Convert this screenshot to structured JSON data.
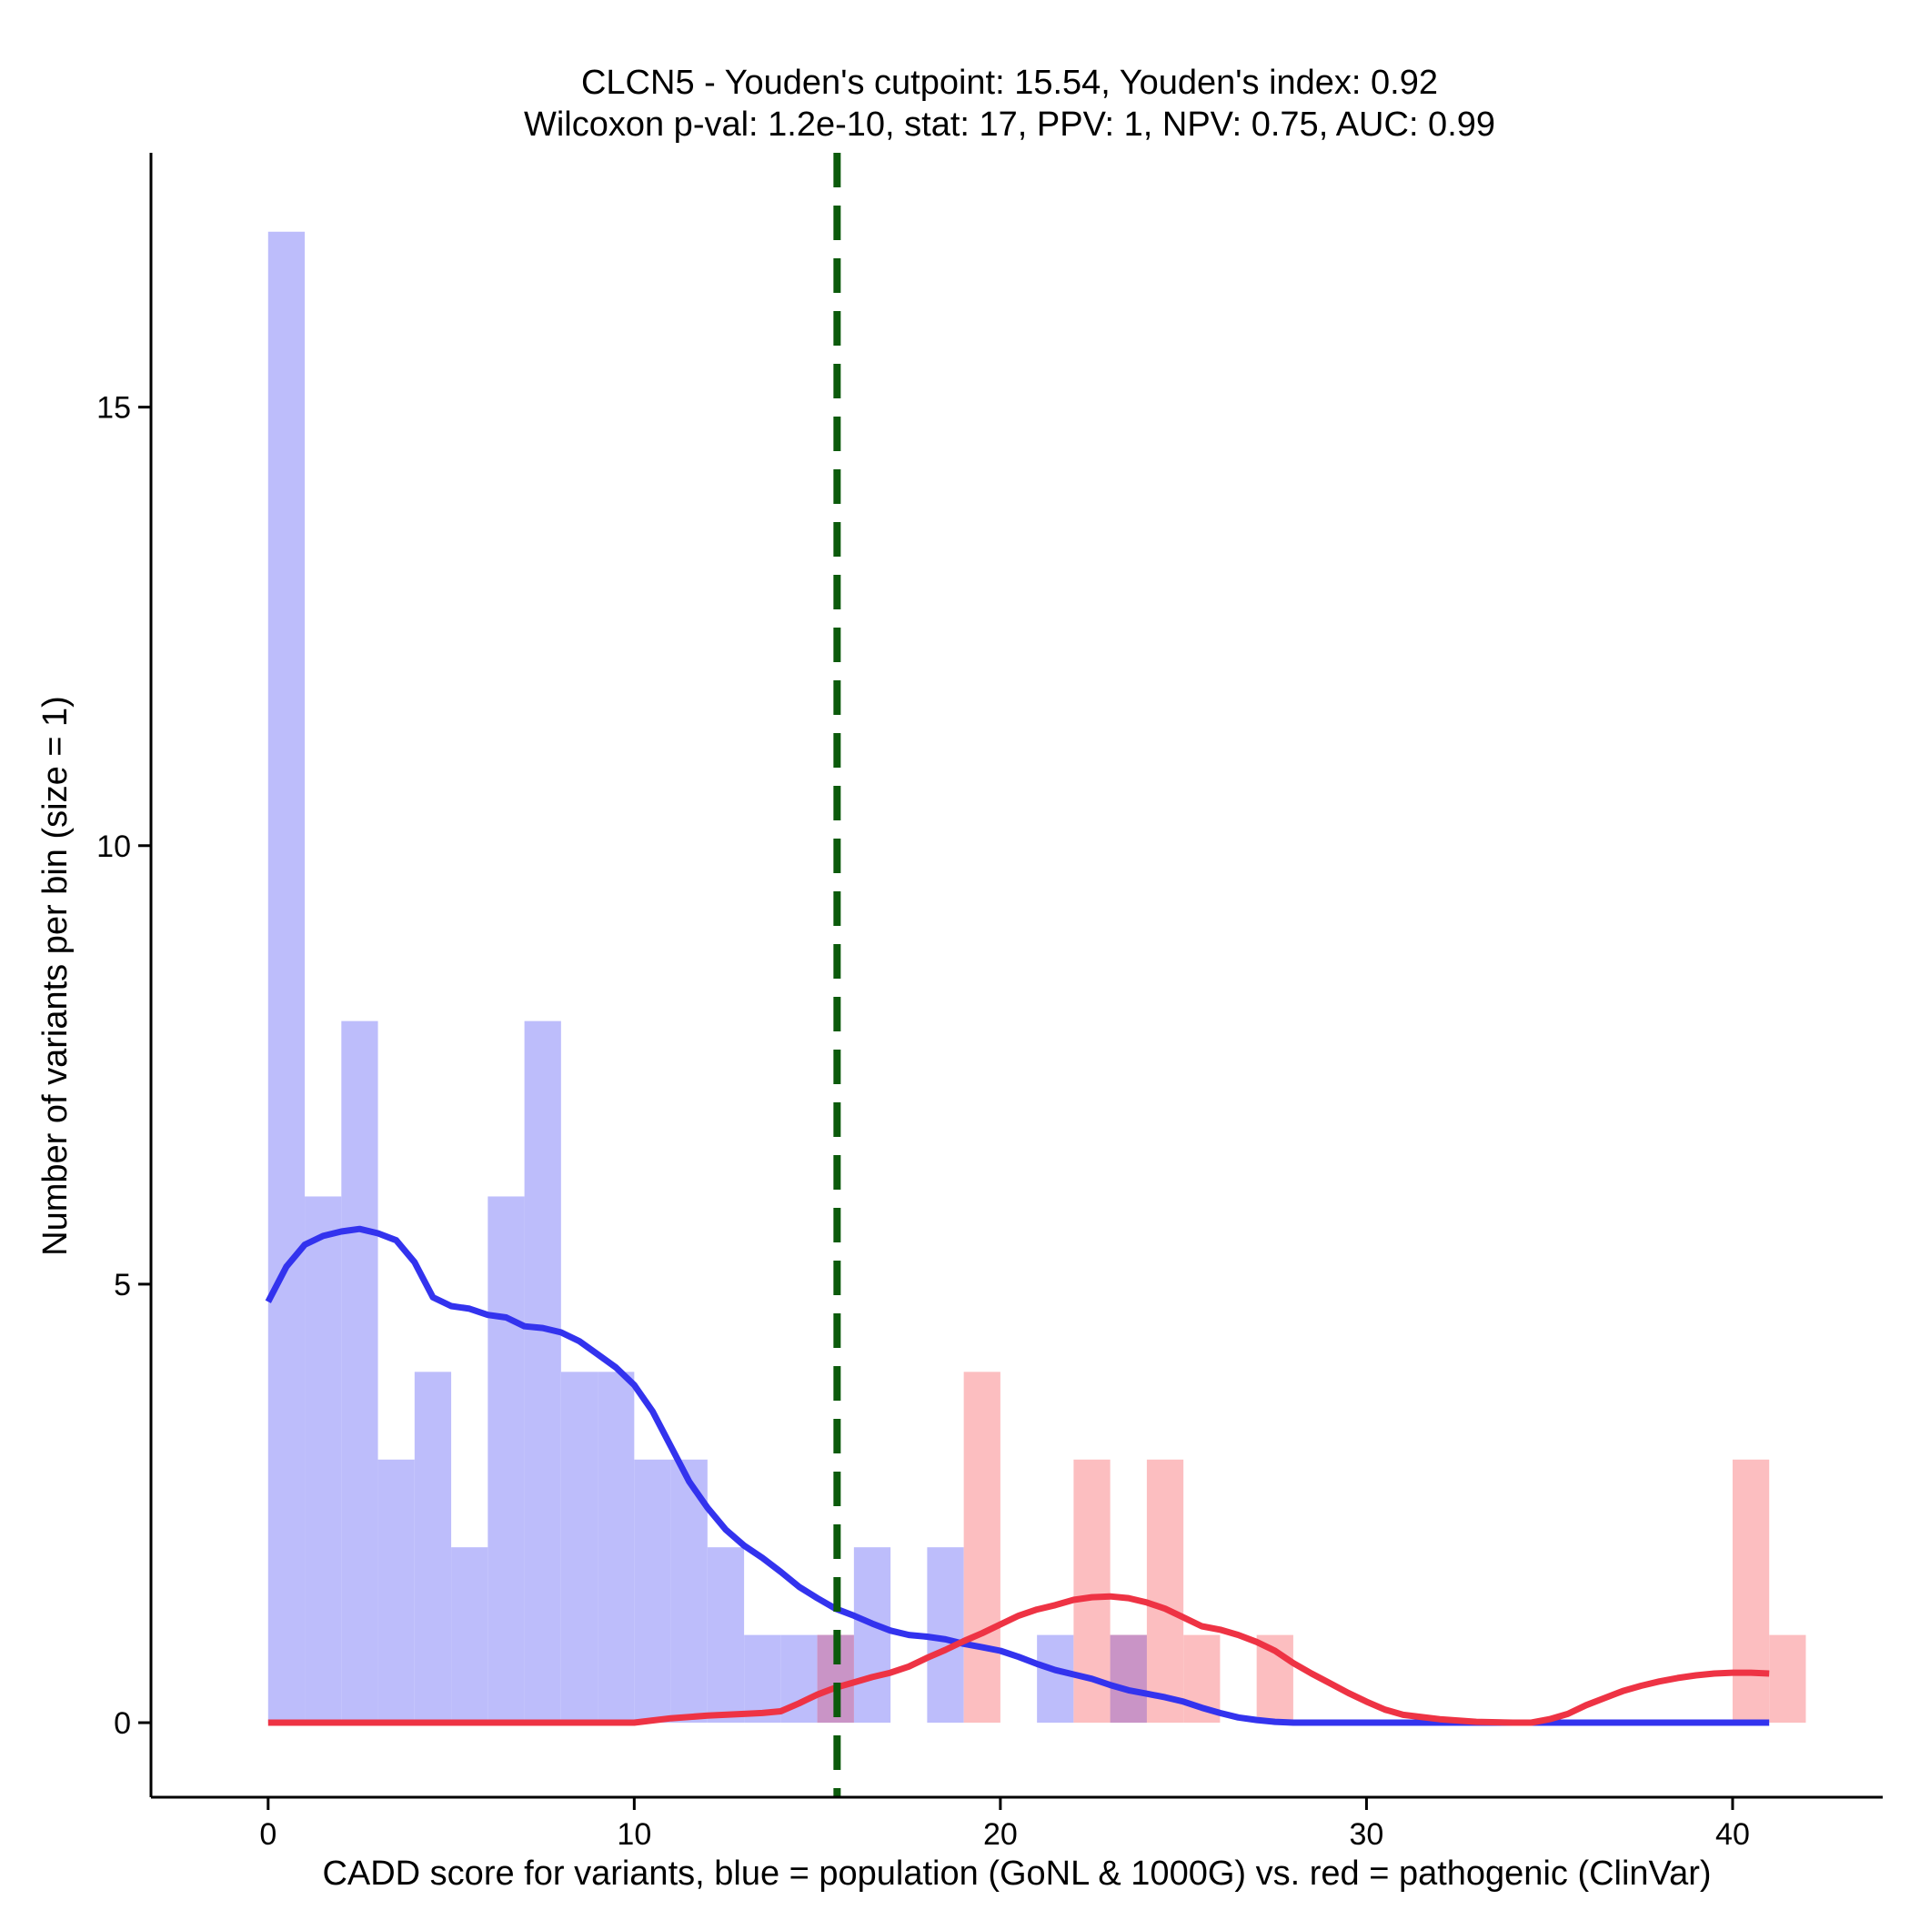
{
  "chart_data": {
    "type": "bar",
    "title": "CLCN5 - Youden's cutpoint: 15.54, Youden's index: 0.92",
    "subtitle": "Wilcoxon p-val: 1.2e-10, stat: 17, PPV: 1, NPV: 0.75, AUC: 0.99",
    "xlabel": "CADD score for variants, blue = population (GoNL & 1000G) vs. red = pathogenic (ClinVar)",
    "ylabel": "Number of variants per bin (size = 1)",
    "xlim": [
      -3.2,
      44.1
    ],
    "ylim": [
      -0.85,
      17.9
    ],
    "xticks": [
      0,
      10,
      20,
      30,
      40
    ],
    "yticks": [
      0,
      5,
      10,
      15
    ],
    "bin_size": 1,
    "cutpoint": 15.54,
    "colors": {
      "population_bar": "#BDBDFB",
      "pathogenic_bar": "#FCBEC0",
      "overlap_bar": "#C994C6",
      "population_line": "#3333EE",
      "pathogenic_line": "#EE3344",
      "cutpoint_line": "#0B5A0B"
    },
    "series": [
      {
        "name": "population (GoNL & 1000G)",
        "bin_starts": [
          0,
          1,
          2,
          3,
          4,
          5,
          6,
          7,
          8,
          9,
          10,
          11,
          12,
          13,
          14,
          15,
          16,
          17,
          18,
          19,
          20,
          21,
          22,
          23,
          24,
          25,
          26,
          27,
          28,
          29,
          30,
          31,
          32,
          33,
          34,
          35,
          36,
          37,
          38,
          39,
          40,
          41
        ],
        "counts": [
          17,
          6,
          8,
          3,
          4,
          2,
          6,
          8,
          4,
          4,
          3,
          3,
          2,
          1,
          1,
          1,
          2,
          0,
          2,
          0,
          0,
          1,
          0,
          1,
          0,
          0,
          0,
          0,
          0,
          0,
          0,
          0,
          0,
          0,
          0,
          0,
          0,
          0,
          0,
          0,
          0,
          0
        ]
      },
      {
        "name": "pathogenic (ClinVar)",
        "bin_starts": [
          0,
          1,
          2,
          3,
          4,
          5,
          6,
          7,
          8,
          9,
          10,
          11,
          12,
          13,
          14,
          15,
          16,
          17,
          18,
          19,
          20,
          21,
          22,
          23,
          24,
          25,
          26,
          27,
          28,
          29,
          30,
          31,
          32,
          33,
          34,
          35,
          36,
          37,
          38,
          39,
          40,
          41
        ],
        "counts": [
          0,
          0,
          0,
          0,
          0,
          0,
          0,
          0,
          0,
          0,
          0,
          0,
          0,
          0,
          0,
          1,
          0,
          0,
          0,
          4,
          0,
          0,
          3,
          1,
          3,
          1,
          0,
          1,
          0,
          0,
          0,
          0,
          0,
          0,
          0,
          0,
          0,
          0,
          0,
          0,
          3,
          1
        ]
      }
    ],
    "density_curves": [
      {
        "name": "population (GoNL & 1000G)",
        "x": [
          0,
          0.5,
          1,
          1.5,
          2,
          2.5,
          3,
          3.5,
          4,
          4.5,
          5,
          5.5,
          6,
          6.5,
          7,
          7.5,
          8,
          8.5,
          9,
          9.5,
          10,
          10.5,
          11,
          11.5,
          12,
          12.5,
          13,
          13.5,
          14,
          14.5,
          15,
          15.5,
          16,
          16.5,
          17,
          17.5,
          18,
          18.5,
          19,
          19.5,
          20,
          20.5,
          21,
          21.5,
          22,
          22.5,
          23,
          23.5,
          24,
          24.5,
          25,
          25.5,
          26,
          26.5,
          27,
          27.5,
          28,
          30,
          32,
          34,
          36,
          38,
          40,
          41
        ],
        "y": [
          4.8,
          5.2,
          5.45,
          5.55,
          5.6,
          5.63,
          5.58,
          5.5,
          5.25,
          4.85,
          4.75,
          4.72,
          4.65,
          4.62,
          4.52,
          4.5,
          4.45,
          4.35,
          4.2,
          4.05,
          3.85,
          3.55,
          3.15,
          2.75,
          2.45,
          2.2,
          2.02,
          1.88,
          1.72,
          1.55,
          1.42,
          1.3,
          1.22,
          1.13,
          1.05,
          1.0,
          0.98,
          0.95,
          0.9,
          0.86,
          0.82,
          0.75,
          0.67,
          0.6,
          0.55,
          0.5,
          0.43,
          0.37,
          0.33,
          0.29,
          0.24,
          0.17,
          0.11,
          0.06,
          0.03,
          0.01,
          0,
          0,
          0,
          0,
          0,
          0,
          0,
          0
        ]
      },
      {
        "name": "pathogenic (ClinVar)",
        "x": [
          0,
          2,
          4,
          6,
          8,
          10,
          11,
          12,
          13,
          13.5,
          14,
          14.5,
          15,
          15.5,
          16,
          16.5,
          17,
          17.5,
          18,
          18.5,
          19,
          19.5,
          20,
          20.5,
          21,
          21.5,
          22,
          22.5,
          23,
          23.5,
          24,
          24.5,
          25,
          25.5,
          26,
          26.5,
          27,
          27.5,
          28,
          28.5,
          29,
          29.5,
          30,
          30.5,
          31,
          32,
          33,
          34,
          34.5,
          35,
          35.5,
          36,
          36.5,
          37,
          37.5,
          38,
          38.5,
          39,
          39.5,
          40,
          40.5,
          41
        ],
        "y": [
          0,
          0,
          0,
          0,
          0,
          0,
          0.05,
          0.08,
          0.1,
          0.11,
          0.13,
          0.22,
          0.32,
          0.4,
          0.46,
          0.52,
          0.57,
          0.64,
          0.74,
          0.83,
          0.93,
          1.02,
          1.12,
          1.22,
          1.29,
          1.34,
          1.4,
          1.43,
          1.44,
          1.42,
          1.37,
          1.3,
          1.2,
          1.1,
          1.06,
          1.0,
          0.92,
          0.82,
          0.68,
          0.56,
          0.45,
          0.34,
          0.24,
          0.15,
          0.09,
          0.04,
          0.01,
          0,
          0,
          0.04,
          0.1,
          0.2,
          0.28,
          0.36,
          0.42,
          0.47,
          0.51,
          0.54,
          0.56,
          0.57,
          0.57,
          0.56
        ]
      }
    ]
  }
}
